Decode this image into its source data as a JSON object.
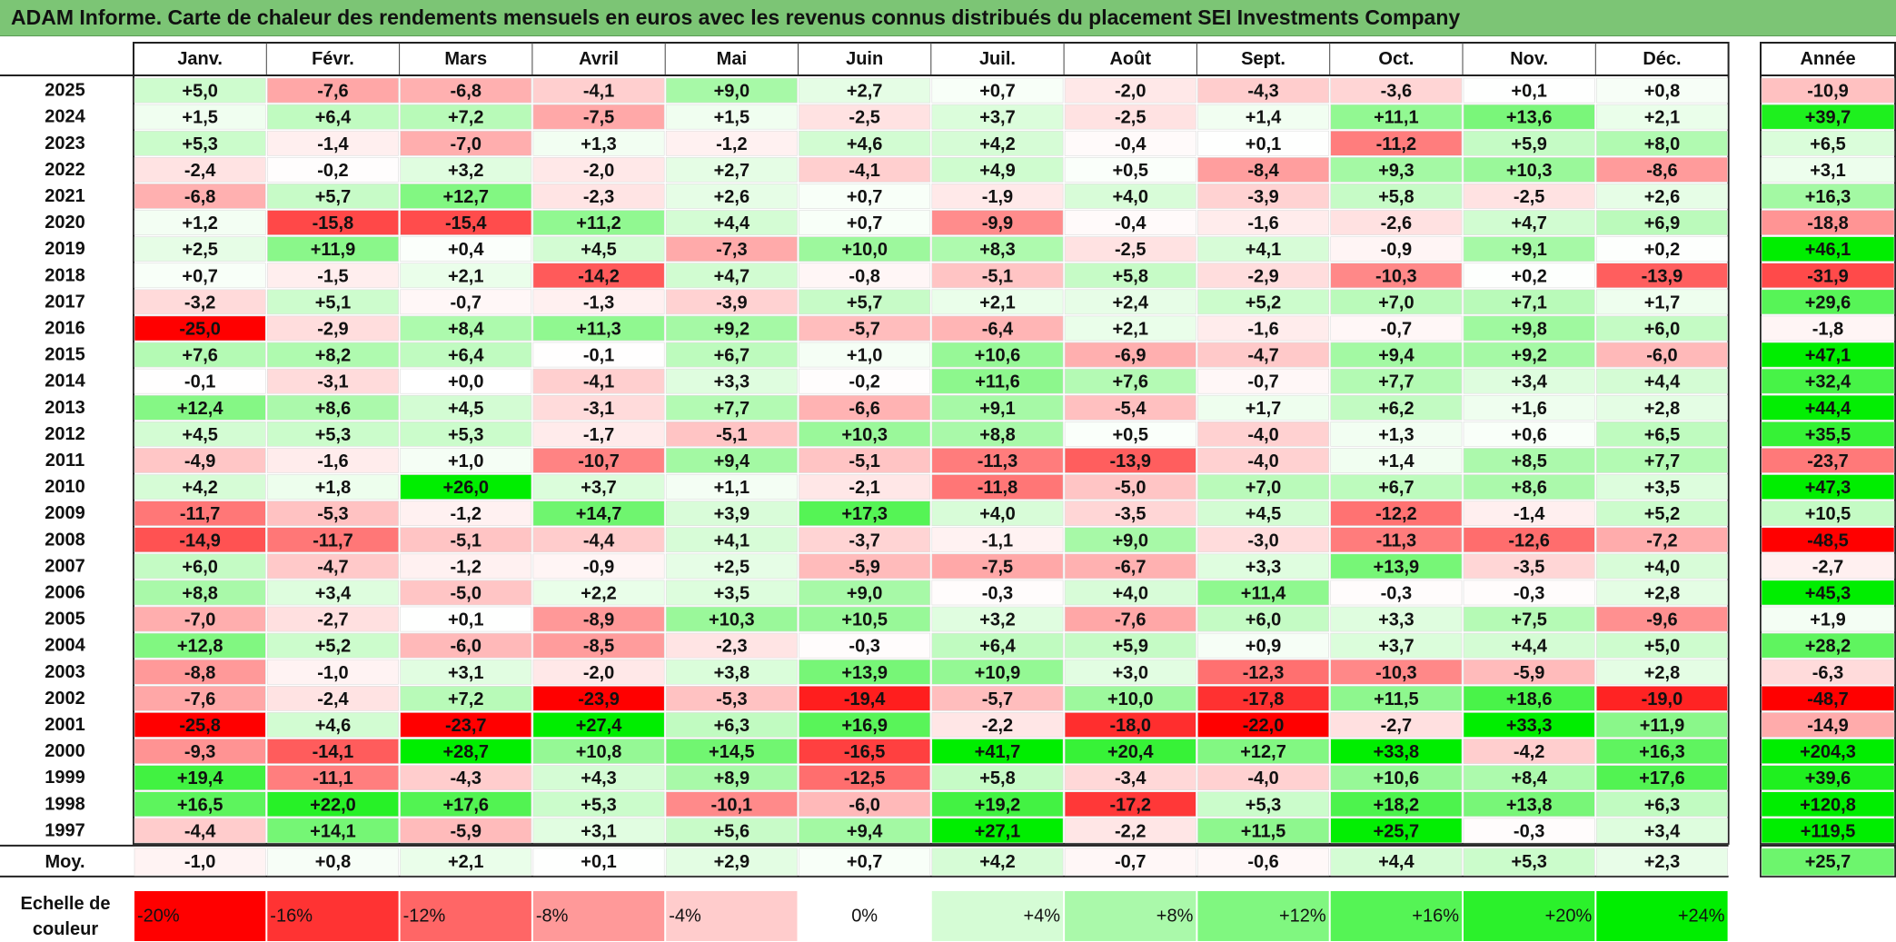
{
  "title": "ADAM Informe. Carte de chaleur des rendements mensuels en euros avec les revenus connus distribués du placement SEI Investments Company",
  "chart_data": {
    "type": "heatmap",
    "title": "ADAM Informe. Carte de chaleur des rendements mensuels en euros avec les revenus connus distribués du placement SEI Investments Company",
    "columns": [
      "Janv.",
      "Févr.",
      "Mars",
      "Avril",
      "Mai",
      "Juin",
      "Juil.",
      "Août",
      "Sept.",
      "Oct.",
      "Nov.",
      "Déc."
    ],
    "year_column_label": "Année",
    "rows": [
      {
        "year": "2025",
        "values": [
          "+5,0",
          "-7,6",
          "-6,8",
          "-4,1",
          "+9,0",
          "+2,7",
          "+0,7",
          "-2,0",
          "-4,3",
          "-3,6",
          "+0,1",
          "+0,8"
        ],
        "annual": "-10,9"
      },
      {
        "year": "2024",
        "values": [
          "+1,5",
          "+6,4",
          "+7,2",
          "-7,5",
          "+1,5",
          "-2,5",
          "+3,7",
          "-2,5",
          "+1,4",
          "+11,1",
          "+13,6",
          "+2,1"
        ],
        "annual": "+39,7"
      },
      {
        "year": "2023",
        "values": [
          "+5,3",
          "-1,4",
          "-7,0",
          "+1,3",
          "-1,2",
          "+4,6",
          "+4,2",
          "-0,4",
          "+0,1",
          "-11,2",
          "+5,9",
          "+8,0"
        ],
        "annual": "+6,5"
      },
      {
        "year": "2022",
        "values": [
          "-2,4",
          "-0,2",
          "+3,2",
          "-2,0",
          "+2,7",
          "-4,1",
          "+4,9",
          "+0,5",
          "-8,4",
          "+9,3",
          "+10,3",
          "-8,6"
        ],
        "annual": "+3,1"
      },
      {
        "year": "2021",
        "values": [
          "-6,8",
          "+5,7",
          "+12,7",
          "-2,3",
          "+2,6",
          "+0,7",
          "-1,9",
          "+4,0",
          "-3,9",
          "+5,8",
          "-2,5",
          "+2,6"
        ],
        "annual": "+16,3"
      },
      {
        "year": "2020",
        "values": [
          "+1,2",
          "-15,8",
          "-15,4",
          "+11,2",
          "+4,4",
          "+0,7",
          "-9,9",
          "-0,4",
          "-1,6",
          "-2,6",
          "+4,7",
          "+6,9"
        ],
        "annual": "-18,8"
      },
      {
        "year": "2019",
        "values": [
          "+2,5",
          "+11,9",
          "+0,4",
          "+4,5",
          "-7,3",
          "+10,0",
          "+8,3",
          "-2,5",
          "+4,1",
          "-0,9",
          "+9,1",
          "+0,2"
        ],
        "annual": "+46,1"
      },
      {
        "year": "2018",
        "values": [
          "+0,7",
          "-1,5",
          "+2,1",
          "-14,2",
          "+4,7",
          "-0,8",
          "-5,1",
          "+5,8",
          "-2,9",
          "-10,3",
          "+0,2",
          "-13,9"
        ],
        "annual": "-31,9"
      },
      {
        "year": "2017",
        "values": [
          "-3,2",
          "+5,1",
          "-0,7",
          "-1,3",
          "-3,9",
          "+5,7",
          "+2,1",
          "+2,4",
          "+5,2",
          "+7,0",
          "+7,1",
          "+1,7"
        ],
        "annual": "+29,6"
      },
      {
        "year": "2016",
        "values": [
          "-25,0",
          "-2,9",
          "+8,4",
          "+11,3",
          "+9,2",
          "-5,7",
          "-6,4",
          "+2,1",
          "-1,6",
          "-0,7",
          "+9,8",
          "+6,0"
        ],
        "annual": "-1,8"
      },
      {
        "year": "2015",
        "values": [
          "+7,6",
          "+8,2",
          "+6,4",
          "-0,1",
          "+6,7",
          "+1,0",
          "+10,6",
          "-6,9",
          "-4,7",
          "+9,4",
          "+9,2",
          "-6,0"
        ],
        "annual": "+47,1"
      },
      {
        "year": "2014",
        "values": [
          "-0,1",
          "-3,1",
          "+0,0",
          "-4,1",
          "+3,3",
          "-0,2",
          "+11,6",
          "+7,6",
          "-0,7",
          "+7,7",
          "+3,4",
          "+4,4"
        ],
        "annual": "+32,4"
      },
      {
        "year": "2013",
        "values": [
          "+12,4",
          "+8,6",
          "+4,5",
          "-3,1",
          "+7,7",
          "-6,6",
          "+9,1",
          "-5,4",
          "+1,7",
          "+6,2",
          "+1,6",
          "+2,8"
        ],
        "annual": "+44,4"
      },
      {
        "year": "2012",
        "values": [
          "+4,5",
          "+5,3",
          "+5,3",
          "-1,7",
          "-5,1",
          "+10,3",
          "+8,8",
          "+0,5",
          "-4,0",
          "+1,3",
          "+0,6",
          "+6,5"
        ],
        "annual": "+35,5"
      },
      {
        "year": "2011",
        "values": [
          "-4,9",
          "-1,6",
          "+1,0",
          "-10,7",
          "+9,4",
          "-5,1",
          "-11,3",
          "-13,9",
          "-4,0",
          "+1,4",
          "+8,5",
          "+7,7"
        ],
        "annual": "-23,7"
      },
      {
        "year": "2010",
        "values": [
          "+4,2",
          "+1,8",
          "+26,0",
          "+3,7",
          "+1,1",
          "-2,1",
          "-11,8",
          "-5,0",
          "+7,0",
          "+6,7",
          "+8,6",
          "+3,5"
        ],
        "annual": "+47,3"
      },
      {
        "year": "2009",
        "values": [
          "-11,7",
          "-5,3",
          "-1,2",
          "+14,7",
          "+3,9",
          "+17,3",
          "+4,0",
          "-3,5",
          "+4,5",
          "-12,2",
          "-1,4",
          "+5,2"
        ],
        "annual": "+10,5"
      },
      {
        "year": "2008",
        "values": [
          "-14,9",
          "-11,7",
          "-5,1",
          "-4,4",
          "+4,1",
          "-3,7",
          "-1,1",
          "+9,0",
          "-3,0",
          "-11,3",
          "-12,6",
          "-7,2"
        ],
        "annual": "-48,5"
      },
      {
        "year": "2007",
        "values": [
          "+6,0",
          "-4,7",
          "-1,2",
          "-0,9",
          "+2,5",
          "-5,9",
          "-7,5",
          "-6,7",
          "+3,3",
          "+13,9",
          "-3,5",
          "+4,0"
        ],
        "annual": "-2,7"
      },
      {
        "year": "2006",
        "values": [
          "+8,8",
          "+3,4",
          "-5,0",
          "+2,2",
          "+3,5",
          "+9,0",
          "-0,3",
          "+4,0",
          "+11,4",
          "-0,3",
          "-0,3",
          "+2,8"
        ],
        "annual": "+45,3"
      },
      {
        "year": "2005",
        "values": [
          "-7,0",
          "-2,7",
          "+0,1",
          "-8,9",
          "+10,3",
          "+10,5",
          "+3,2",
          "-7,6",
          "+6,0",
          "+3,3",
          "+7,5",
          "-9,6"
        ],
        "annual": "+1,9"
      },
      {
        "year": "2004",
        "values": [
          "+12,8",
          "+5,2",
          "-6,0",
          "-8,5",
          "-2,3",
          "-0,3",
          "+6,4",
          "+5,9",
          "+0,9",
          "+3,7",
          "+4,4",
          "+5,0"
        ],
        "annual": "+28,2"
      },
      {
        "year": "2003",
        "values": [
          "-8,8",
          "-1,0",
          "+3,1",
          "-2,0",
          "+3,8",
          "+13,9",
          "+10,9",
          "+3,0",
          "-12,3",
          "-10,3",
          "-5,9",
          "+2,8"
        ],
        "annual": "-6,3"
      },
      {
        "year": "2002",
        "values": [
          "-7,6",
          "-2,4",
          "+7,2",
          "-23,9",
          "-5,3",
          "-19,4",
          "-5,7",
          "+10,0",
          "-17,8",
          "+11,5",
          "+18,6",
          "-19,0"
        ],
        "annual": "-48,7"
      },
      {
        "year": "2001",
        "values": [
          "-25,8",
          "+4,6",
          "-23,7",
          "+27,4",
          "+6,3",
          "+16,9",
          "-2,2",
          "-18,0",
          "-22,0",
          "-2,7",
          "+33,3",
          "+11,9"
        ],
        "annual": "-14,9"
      },
      {
        "year": "2000",
        "values": [
          "-9,3",
          "-14,1",
          "+28,7",
          "+10,8",
          "+14,5",
          "-16,5",
          "+41,7",
          "+20,4",
          "+12,7",
          "+33,8",
          "-4,2",
          "+16,3"
        ],
        "annual": "+204,3"
      },
      {
        "year": "1999",
        "values": [
          "+19,4",
          "-11,1",
          "-4,3",
          "+4,3",
          "+8,9",
          "-12,5",
          "+5,8",
          "-3,4",
          "-4,0",
          "+10,6",
          "+8,4",
          "+17,6"
        ],
        "annual": "+39,6"
      },
      {
        "year": "1998",
        "values": [
          "+16,5",
          "+22,0",
          "+17,6",
          "+5,3",
          "-10,1",
          "-6,0",
          "+19,2",
          "-17,2",
          "+5,3",
          "+18,2",
          "+13,8",
          "+6,3"
        ],
        "annual": "+120,8"
      },
      {
        "year": "1997",
        "values": [
          "-4,4",
          "+14,1",
          "-5,9",
          "+3,1",
          "+5,6",
          "+9,4",
          "+27,1",
          "-2,2",
          "+11,5",
          "+25,7",
          "-0,3",
          "+3,4"
        ],
        "annual": "+119,5"
      }
    ],
    "average": {
      "label": "Moy.",
      "values": [
        "-1,0",
        "+0,8",
        "+2,1",
        "+0,1",
        "+2,9",
        "+0,7",
        "+4,2",
        "-0,7",
        "-0,6",
        "+4,4",
        "+5,3",
        "+2,3"
      ],
      "annual": "+25,7"
    },
    "color_scale": {
      "label_line1": "Echelle de",
      "label_line2": "couleur",
      "stops": [
        "-20%",
        "-16%",
        "-12%",
        "-8%",
        "-4%",
        "0%",
        "+4%",
        "+8%",
        "+12%",
        "+16%",
        "+20%",
        "+24%"
      ],
      "negative_color": "#ff0000",
      "neutral_color": "#ffffff",
      "positive_color": "#00ee00"
    }
  }
}
